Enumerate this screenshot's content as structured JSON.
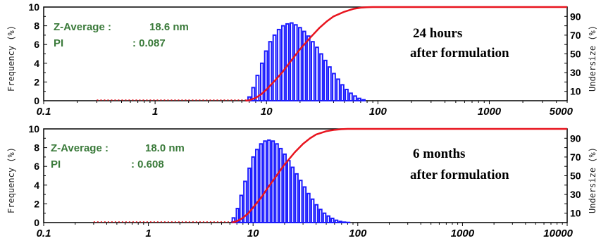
{
  "colors": {
    "bar": "#1a1aff",
    "cumulative": "#e8141e",
    "dotted": "#e8141e",
    "annotation": "#3a7a3a",
    "axis": "#000000"
  },
  "chart_data": [
    {
      "type": "bar",
      "ylabel": "Frequency (%)",
      "y2label": "Undersize (%)",
      "x_scale": "log",
      "xlim": [
        0.1,
        5000
      ],
      "ylim": [
        0,
        10
      ],
      "y2lim": [
        0,
        100
      ],
      "xticks": [
        "0.1",
        "1",
        "10",
        "100",
        "1000",
        "5000"
      ],
      "xtick_values": [
        0.1,
        1,
        10,
        100,
        1000,
        5000
      ],
      "yticks": [
        "0",
        "2",
        "4",
        "6",
        "8",
        "10"
      ],
      "y2ticks": [
        "10",
        "30",
        "50",
        "70",
        "90"
      ],
      "z_average_label": "Z-Average :",
      "z_average_value": "18.6 nm",
      "pi_label": "PI",
      "pi_value": ": 0.087",
      "note_line1": "24 hours",
      "note_line2": "after formulation",
      "dotted_range": [
        0.3,
        7.0
      ],
      "bars": {
        "x": [
          7.0,
          7.6,
          8.3,
          9.1,
          9.9,
          10.8,
          11.8,
          12.9,
          14.1,
          15.4,
          16.8,
          18.3,
          20.0,
          21.8,
          23.8,
          26.0,
          28.4,
          31.0,
          33.8,
          36.9,
          40.3,
          44.0,
          48.0,
          52.4,
          57.2,
          62.4,
          68.1,
          74.4
        ],
        "values": [
          0.4,
          1.4,
          2.7,
          4.0,
          5.3,
          6.3,
          7.0,
          7.6,
          8.0,
          8.2,
          8.3,
          8.1,
          7.8,
          7.4,
          6.9,
          6.3,
          5.7,
          5.0,
          4.3,
          3.6,
          2.9,
          2.3,
          1.7,
          1.2,
          0.8,
          0.5,
          0.25,
          0.1
        ]
      },
      "cumulative": {
        "x": [
          6.5,
          7,
          8,
          9,
          10,
          12,
          14,
          16,
          18,
          20,
          25,
          30,
          35,
          40,
          50,
          60,
          70,
          80,
          90,
          100,
          120
        ],
        "values": [
          0,
          0.5,
          3,
          7,
          12,
          22,
          31,
          40,
          48,
          55,
          68,
          78,
          85,
          90,
          95,
          98,
          99.3,
          99.8,
          100,
          100,
          100
        ]
      }
    },
    {
      "type": "bar",
      "ylabel": "Frequency (%)",
      "y2label": "Undersize (%)",
      "x_scale": "log",
      "xlim": [
        0.1,
        10000
      ],
      "ylim": [
        0,
        10
      ],
      "y2lim": [
        0,
        100
      ],
      "xticks": [
        "0.1",
        "1",
        "10",
        "100",
        "1000",
        "10000"
      ],
      "xtick_values": [
        0.1,
        1,
        10,
        100,
        1000,
        10000
      ],
      "yticks": [
        "0",
        "2",
        "4",
        "6",
        "8",
        "10"
      ],
      "y2ticks": [
        "10",
        "30",
        "50",
        "70",
        "90"
      ],
      "z_average_label": "Z-Average :",
      "z_average_value": "18.0 nm",
      "pi_label": "PI",
      "pi_value": ": 0.608",
      "note_line1": "6 months",
      "note_line2": "after formulation",
      "dotted_range": [
        0.3,
        6.5
      ],
      "bars": {
        "x": [
          6.5,
          7.1,
          7.7,
          8.4,
          9.2,
          10.0,
          10.9,
          11.9,
          13.0,
          14.2,
          15.5,
          16.9,
          18.4,
          20.1,
          21.9,
          23.9,
          26.1,
          28.5,
          31.1,
          33.9,
          37.0,
          40.4,
          44.1,
          48.1,
          52.5,
          57.3,
          62.5,
          68.2,
          74.5,
          81.3
        ],
        "values": [
          0.5,
          1.5,
          2.9,
          4.4,
          5.8,
          7.0,
          7.8,
          8.4,
          8.7,
          8.8,
          8.7,
          8.4,
          7.9,
          7.3,
          6.6,
          5.9,
          5.2,
          4.5,
          3.8,
          3.1,
          2.5,
          1.9,
          1.4,
          1.0,
          0.7,
          0.45,
          0.25,
          0.12,
          0.05,
          0.02
        ]
      },
      "cumulative": {
        "x": [
          6.3,
          7,
          8,
          9,
          10,
          12,
          14,
          16,
          18,
          20,
          25,
          30,
          35,
          40,
          50,
          60,
          70,
          80,
          100,
          120
        ],
        "values": [
          0,
          1.5,
          5,
          10,
          16,
          27,
          38,
          47,
          55,
          62,
          75,
          84,
          90,
          94,
          97.5,
          99,
          99.7,
          100,
          100,
          100
        ]
      }
    }
  ]
}
